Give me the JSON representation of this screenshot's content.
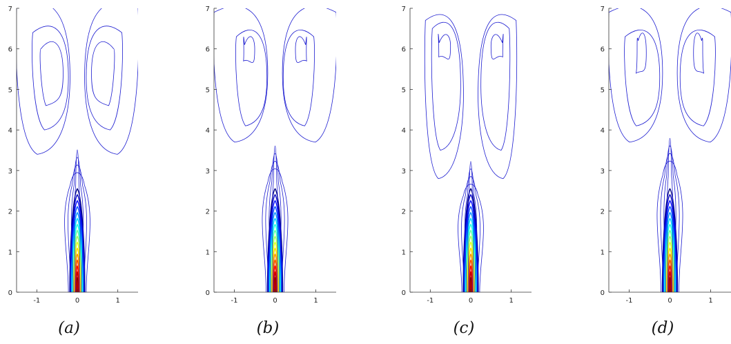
{
  "chart_data": [
    {
      "type": "contour",
      "caption": "(a)",
      "x_ticks": [
        -1,
        0,
        1
      ],
      "y_ticks": [
        0,
        1,
        2,
        3,
        4,
        5,
        6,
        7
      ],
      "xlim": [
        -1.5,
        1.5
      ],
      "ylim": [
        0,
        7
      ],
      "stem_top": 3.3,
      "vortex_levels": [
        {
          "x_in": 0.18,
          "x_out": 1.5,
          "top": 7.2,
          "bottom": 3.4
        },
        {
          "x_in": 0.22,
          "x_out": 1.1,
          "top": 6.6,
          "bottom": 4.0
        },
        {
          "x_in": 0.35,
          "x_out": 0.9,
          "top": 6.2,
          "bottom": 4.6
        }
      ]
    },
    {
      "type": "contour",
      "caption": "(b)",
      "x_ticks": [
        -1,
        0,
        1
      ],
      "y_ticks": [
        0,
        1,
        2,
        3,
        4,
        5,
        6,
        7
      ],
      "xlim": [
        -1.5,
        1.5
      ],
      "ylim": [
        0,
        7
      ],
      "stem_top": 3.4,
      "vortex_levels": [
        {
          "x_in": 0.18,
          "x_out": 1.5,
          "top": 7.1,
          "bottom": 3.7
        },
        {
          "x_in": 0.2,
          "x_out": 0.95,
          "top": 6.5,
          "bottom": 4.1
        },
        {
          "x_in": 0.5,
          "x_out": 0.75,
          "top": 6.3,
          "bottom": 5.7
        }
      ]
    },
    {
      "type": "contour",
      "caption": "(c)",
      "x_ticks": [
        -1,
        0,
        1
      ],
      "y_ticks": [
        0,
        1,
        2,
        3,
        4,
        5,
        6,
        7
      ],
      "xlim": [
        -1.5,
        1.5
      ],
      "ylim": [
        0,
        7
      ],
      "stem_top": 3.0,
      "vortex_levels": [
        {
          "x_in": 0.18,
          "x_out": 1.12,
          "top": 6.9,
          "bottom": 2.8
        },
        {
          "x_in": 0.25,
          "x_out": 0.95,
          "top": 6.7,
          "bottom": 3.5
        },
        {
          "x_in": 0.5,
          "x_out": 0.78,
          "top": 6.35,
          "bottom": 5.8
        }
      ]
    },
    {
      "type": "contour",
      "caption": "(d)",
      "x_ticks": [
        -1,
        0,
        1
      ],
      "y_ticks": [
        0,
        1,
        2,
        3,
        4,
        5,
        6,
        7
      ],
      "xlim": [
        -1.5,
        1.5
      ],
      "ylim": [
        0,
        7
      ],
      "stem_top": 3.6,
      "vortex_levels": [
        {
          "x_in": 0.18,
          "x_out": 1.5,
          "top": 7.1,
          "bottom": 3.7
        },
        {
          "x_in": 0.25,
          "x_out": 1.1,
          "top": 6.5,
          "bottom": 4.1
        },
        {
          "x_in": 0.58,
          "x_out": 0.78,
          "top": 6.4,
          "bottom": 5.4
        }
      ]
    }
  ]
}
